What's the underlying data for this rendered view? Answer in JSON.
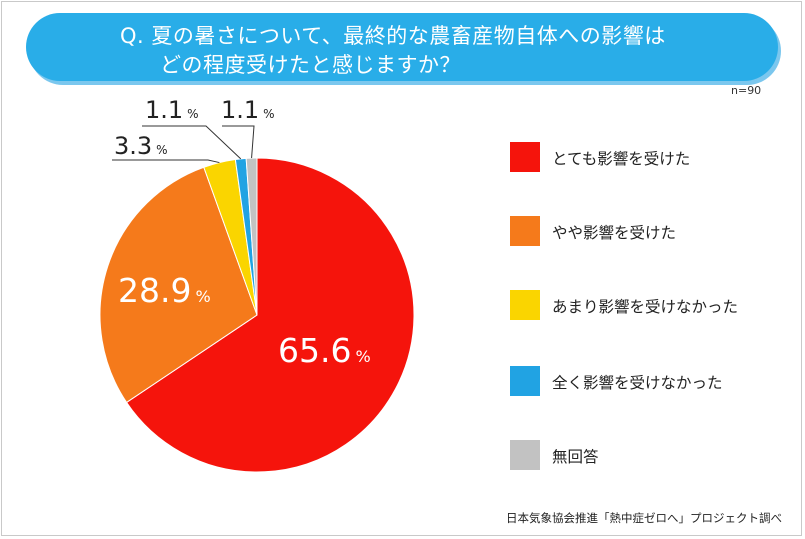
{
  "title": {
    "line1": "Q. 夏の暑さについて、最終的な農畜産物自体への影響は",
    "line2": "どの程度受けたと感じますか？"
  },
  "sample_size": "n=90",
  "source": "日本気象協会推進「熱中症ゼロへ」プロジェクト調べ",
  "pct_sign": "%",
  "chart_data": {
    "type": "pie",
    "title": "Q. 夏の暑さについて、最終的な農畜産物自体への影響は どの程度受けたと感じますか？",
    "categories": [
      "とても影響を受けた",
      "やや影響を受けた",
      "あまり影響を受けなかった",
      "全く影響を受けなかった",
      "無回答"
    ],
    "values": [
      65.6,
      28.9,
      3.3,
      1.1,
      1.1
    ],
    "value_labels": [
      "65.6",
      "28.9",
      "3.3",
      "1.1",
      "1.1"
    ],
    "colors": [
      "#f5140c",
      "#f57a1b",
      "#fad500",
      "#21a3e3",
      "#c2c2c2"
    ],
    "legend_position": "right",
    "start": "top, clockwise"
  }
}
